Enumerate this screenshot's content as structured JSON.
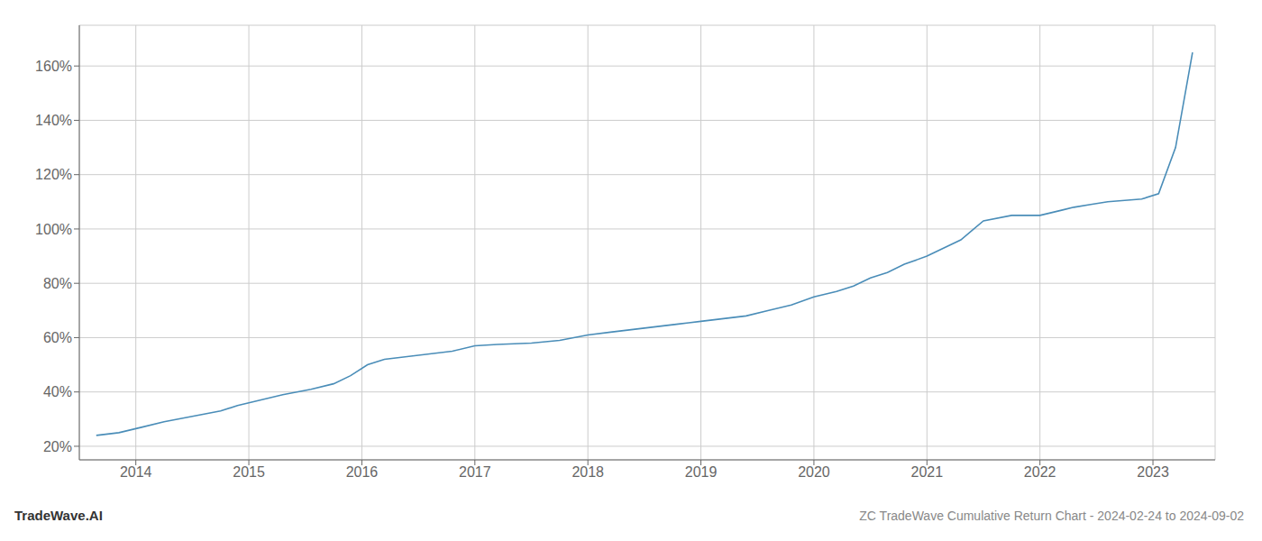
{
  "chart_data": {
    "type": "line",
    "title": "ZC TradeWave Cumulative Return Chart - 2024-02-24 to 2024-09-02",
    "annotations": [
      "TradeWave.AI"
    ],
    "color": "#4a8db8",
    "grid": true,
    "x": [
      2013.65,
      2013.85,
      2014.05,
      2014.25,
      2014.5,
      2014.75,
      2014.9,
      2015.1,
      2015.3,
      2015.55,
      2015.75,
      2015.9,
      2016.05,
      2016.2,
      2016.4,
      2016.6,
      2016.8,
      2017.0,
      2017.2,
      2017.5,
      2017.75,
      2018.0,
      2018.2,
      2018.4,
      2018.6,
      2018.8,
      2019.0,
      2019.2,
      2019.4,
      2019.6,
      2019.8,
      2020.0,
      2020.2,
      2020.35,
      2020.5,
      2020.65,
      2020.8,
      2021.0,
      2021.15,
      2021.3,
      2021.5,
      2021.75,
      2022.0,
      2022.1,
      2022.2,
      2022.3,
      2022.45,
      2022.6,
      2022.75,
      2022.9,
      2023.05,
      2023.2,
      2023.35
    ],
    "values": [
      24,
      25,
      27,
      29,
      31,
      33,
      35,
      37,
      39,
      41,
      43,
      46,
      50,
      52,
      53,
      54,
      55,
      57,
      57.5,
      58,
      59,
      61,
      62,
      63,
      64,
      65,
      66,
      67,
      68,
      70,
      72,
      75,
      77,
      79,
      82,
      84,
      87,
      90,
      93,
      96,
      103,
      105,
      105,
      106,
      107,
      108,
      109,
      110,
      110.5,
      111,
      113,
      130,
      165
    ],
    "xlim": [
      2013.5,
      2023.55
    ],
    "xticks": [
      2014,
      2015,
      2016,
      2017,
      2018,
      2019,
      2020,
      2021,
      2022,
      2023
    ],
    "ylim": [
      15,
      175
    ],
    "yticks": [
      {
        "value": 20,
        "label": "20%"
      },
      {
        "value": 40,
        "label": "40%"
      },
      {
        "value": 60,
        "label": "60%"
      },
      {
        "value": 80,
        "label": "80%"
      },
      {
        "value": 100,
        "label": "100%"
      },
      {
        "value": 120,
        "label": "120%"
      },
      {
        "value": 140,
        "label": "140%"
      },
      {
        "value": 160,
        "label": "160%"
      }
    ]
  }
}
